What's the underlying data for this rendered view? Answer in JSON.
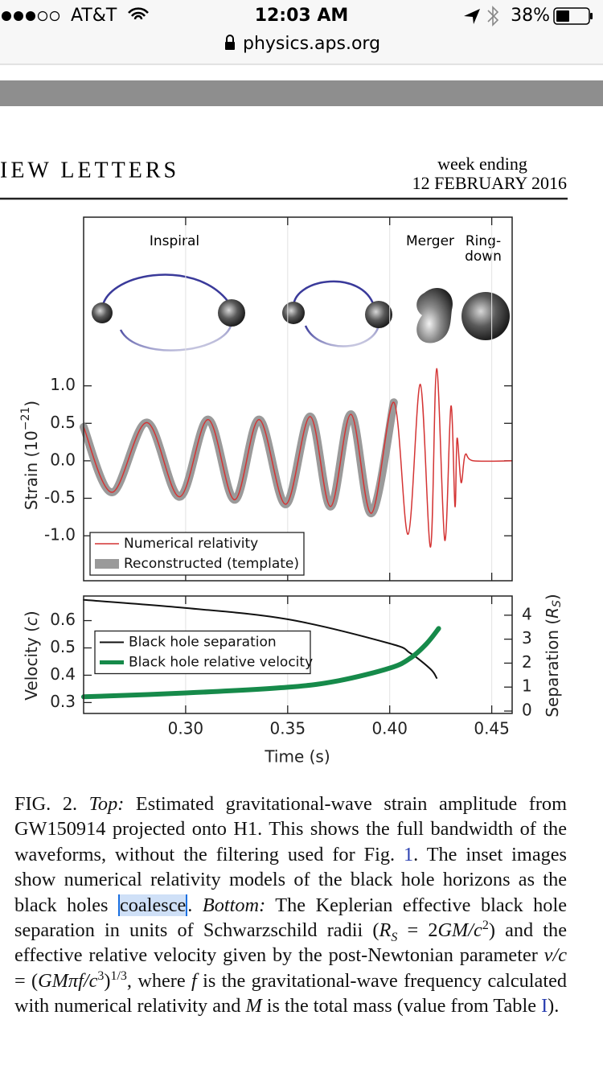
{
  "status_bar": {
    "carrier": "AT&T",
    "time": "12:03 AM",
    "battery": "38%",
    "url": "physics.aps.org"
  },
  "header": {
    "journal": "IEW LETTERS",
    "week_label": "week ending",
    "date": "12 FEBRUARY 2016"
  },
  "chart_data": [
    {
      "type": "line",
      "annotations": [
        "Inspiral",
        "Merger",
        "Ring-",
        "down"
      ],
      "ylabel": [
        "Strain (10",
        "−21",
        ")"
      ],
      "xlim": [
        0.25,
        0.46
      ],
      "ylim": [
        -1.6,
        3.25
      ],
      "yticks": [
        {
          "value": 1,
          "label": "1.0"
        },
        0.5,
        {
          "value": 0,
          "label": "0.0"
        },
        -0.5,
        {
          "value": -1,
          "label": "-1.0"
        }
      ],
      "grid": "x",
      "legend": "lower left",
      "series": [
        {
          "name": "Reconstructed (template)",
          "color": "#9a9a9a",
          "width": 10,
          "x": [
            0.25,
            0.264,
            0.281,
            0.297,
            0.311,
            0.324,
            0.336,
            0.349,
            0.361,
            0.371,
            0.381,
            0.391,
            0.402
          ],
          "values": [
            0.45,
            -0.42,
            0.51,
            -0.48,
            0.55,
            -0.52,
            0.55,
            -0.58,
            0.59,
            -0.61,
            0.62,
            -0.7,
            0.78
          ]
        },
        {
          "name": "Numerical relativity",
          "color": "#d43434",
          "width": 1.5,
          "x": [
            0.25,
            0.264,
            0.281,
            0.297,
            0.311,
            0.324,
            0.336,
            0.349,
            0.361,
            0.371,
            0.381,
            0.391,
            0.402,
            0.409,
            0.415,
            0.42,
            0.423,
            0.427,
            0.43,
            0.432,
            0.433,
            0.435,
            0.437,
            0.441,
            0.46
          ],
          "values": [
            0.45,
            -0.42,
            0.51,
            -0.48,
            0.55,
            -0.52,
            0.55,
            -0.58,
            0.59,
            -0.61,
            0.62,
            -0.7,
            0.78,
            -0.98,
            1.02,
            -1.15,
            1.23,
            -1.06,
            0.73,
            -0.61,
            0.3,
            -0.29,
            0.08,
            0,
            0
          ]
        }
      ]
    },
    {
      "type": "line",
      "xlabel": "Time (s)",
      "ylabel": [
        "Velocity (",
        "c",
        ")"
      ],
      "y2label": [
        "Separation (",
        "R",
        "S",
        ")"
      ],
      "xlim": [
        0.25,
        0.46
      ],
      "ylim": [
        0.26,
        0.69
      ],
      "y2lim": [
        -0.1,
        4.8
      ],
      "xticks": [
        {
          "value": 0.3,
          "label": "0.30"
        },
        0.35,
        {
          "value": 0.4,
          "label": "0.40"
        },
        0.45
      ],
      "yticks": [
        0.3,
        0.4,
        0.5,
        0.6
      ],
      "y2ticks": [
        0,
        1,
        2,
        3,
        4
      ],
      "grid": "x",
      "legend": "center left",
      "series": [
        {
          "name": "Black hole separation",
          "color": "#111111",
          "width": 2,
          "axis": "y2",
          "x": [
            0.25,
            0.3,
            0.35,
            0.4,
            0.41,
            0.42,
            0.423
          ],
          "values": [
            4.64,
            4.3,
            3.83,
            2.82,
            2.42,
            1.75,
            1.38
          ]
        },
        {
          "name": "Black hole relative velocity",
          "color": "#168a4a",
          "width": 6,
          "x": [
            0.25,
            0.3,
            0.35,
            0.375,
            0.4,
            0.41,
            0.418,
            0.424
          ],
          "values": [
            0.321,
            0.335,
            0.356,
            0.38,
            0.426,
            0.462,
            0.515,
            0.571
          ]
        }
      ]
    }
  ],
  "caption": {
    "segments": [
      "FIG. 2. ",
      "Top:",
      " Estimated gravitational-wave strain amplitude from GW150914 projected onto H1. This shows the full bandwidth of the waveforms, without the filtering used for Fig. ",
      "1",
      ". The inset images show numerical relativity models of the black hole horizons as the black holes ",
      "coalesce",
      ". ",
      "Bottom:",
      " The Keplerian effective black hole separation in units of Schwarzschild radii (",
      "R",
      "S",
      " = 2",
      "GM/c",
      "2",
      ") and the effective relative velocity given by the post-Newtonian parameter ",
      "v/c",
      " = (",
      "GMπf/c",
      "3",
      ")",
      "1/3",
      ", where ",
      "f",
      " is the gravitational-wave frequency calculated with numerical relativity and ",
      "M",
      " is the total mass (value from Table ",
      "I",
      ")."
    ]
  }
}
